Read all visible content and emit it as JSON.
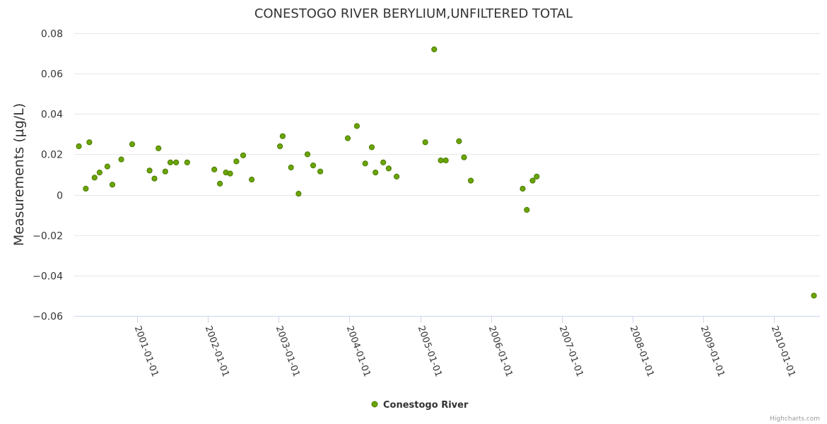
{
  "chart_data": {
    "type": "scatter",
    "title": "CONESTOGO RIVER BERYLIUM,UNFILTERED TOTAL",
    "ylabel": "Measurements (µg/L)",
    "xlabel": "",
    "ylim": [
      -0.06,
      0.08
    ],
    "yticks": [
      -0.06,
      -0.04,
      -0.02,
      0,
      0.02,
      0.04,
      0.06,
      0.08
    ],
    "ytick_labels": [
      "−0.06",
      "−0.04",
      "−0.02",
      "0",
      "0.02",
      "0.04",
      "0.06",
      "0.08"
    ],
    "xlim": [
      "2000-02-10",
      "2010-08-25"
    ],
    "xticks": [
      "2001-01-01",
      "2002-01-01",
      "2003-01-01",
      "2004-01-01",
      "2005-01-01",
      "2006-01-01",
      "2007-01-01",
      "2008-01-01",
      "2009-01-01",
      "2010-01-01"
    ],
    "grid": true,
    "legend": "bottom-center",
    "credits": "Highcharts.com",
    "series": [
      {
        "name": "Conestogo River",
        "color": "#6aa500",
        "points": [
          [
            "2000-03-05",
            0.024
          ],
          [
            "2000-04-10",
            0.003
          ],
          [
            "2000-04-28",
            0.026
          ],
          [
            "2000-05-25",
            0.0085
          ],
          [
            "2000-06-20",
            0.011
          ],
          [
            "2000-07-30",
            0.014
          ],
          [
            "2000-08-25",
            0.005
          ],
          [
            "2000-10-10",
            0.0175
          ],
          [
            "2000-12-05",
            0.025
          ],
          [
            "2001-03-05",
            0.012
          ],
          [
            "2001-03-30",
            0.008
          ],
          [
            "2001-04-20",
            0.023
          ],
          [
            "2001-05-25",
            0.0115
          ],
          [
            "2001-06-20",
            0.016
          ],
          [
            "2001-07-20",
            0.016
          ],
          [
            "2001-09-15",
            0.016
          ],
          [
            "2002-02-02",
            0.0125
          ],
          [
            "2002-03-03",
            0.0055
          ],
          [
            "2002-04-03",
            0.011
          ],
          [
            "2002-04-25",
            0.0105
          ],
          [
            "2002-05-27",
            0.0165
          ],
          [
            "2002-07-01",
            0.0195
          ],
          [
            "2002-08-14",
            0.0075
          ],
          [
            "2003-01-07",
            0.024
          ],
          [
            "2003-01-21",
            0.029
          ],
          [
            "2003-03-05",
            0.0135
          ],
          [
            "2003-04-13",
            0.0005
          ],
          [
            "2003-05-29",
            0.02
          ],
          [
            "2003-06-27",
            0.0145
          ],
          [
            "2003-08-03",
            0.0115
          ],
          [
            "2003-12-23",
            0.028
          ],
          [
            "2004-02-08",
            0.034
          ],
          [
            "2004-03-22",
            0.0155
          ],
          [
            "2004-04-25",
            0.0235
          ],
          [
            "2004-05-14",
            0.011
          ],
          [
            "2004-06-23",
            0.016
          ],
          [
            "2004-07-21",
            0.013
          ],
          [
            "2004-08-31",
            0.009
          ],
          [
            "2005-01-26",
            0.026
          ],
          [
            "2005-03-13",
            0.072
          ],
          [
            "2005-04-16",
            0.017
          ],
          [
            "2005-05-12",
            0.017
          ],
          [
            "2005-07-19",
            0.0265
          ],
          [
            "2005-08-14",
            0.0185
          ],
          [
            "2005-09-18",
            0.007
          ],
          [
            "2006-06-13",
            0.003
          ],
          [
            "2006-07-04",
            -0.0075
          ],
          [
            "2006-08-03",
            0.007
          ],
          [
            "2006-08-24",
            0.009
          ],
          [
            "2010-07-25",
            -0.05
          ]
        ]
      }
    ]
  }
}
